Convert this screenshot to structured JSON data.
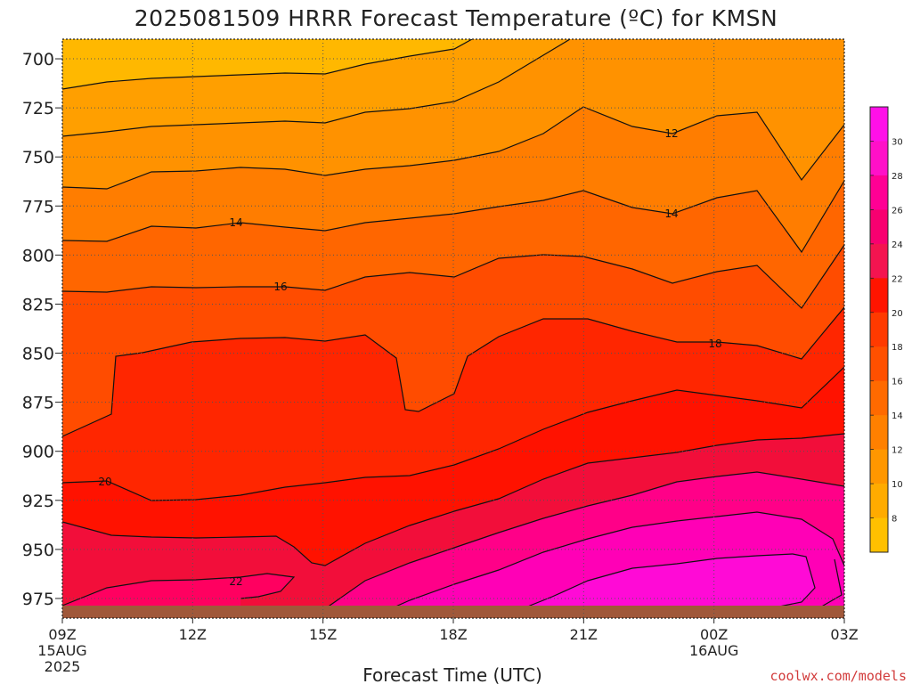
{
  "title": "2025081509 HRRR Forecast Temperature (ºC) for KMSN",
  "credit": "coolwx.com/models",
  "chart_data": {
    "type": "heatmap",
    "title": "2025081509 HRRR Forecast Temperature (ºC) for KMSN",
    "xlabel": "Forecast Time (UTC)",
    "ylabel": "",
    "y_scale": "pressure (reversed)",
    "ylim": [
      985,
      690
    ],
    "x_ticks": [
      {
        "label": "09Z",
        "sub": [
          "15AUG",
          "2025"
        ]
      },
      {
        "label": "12Z",
        "sub": []
      },
      {
        "label": "15Z",
        "sub": []
      },
      {
        "label": "18Z",
        "sub": []
      },
      {
        "label": "21Z",
        "sub": []
      },
      {
        "label": "00Z",
        "sub": [
          "16AUG"
        ]
      },
      {
        "label": "03Z",
        "sub": []
      }
    ],
    "y_ticks": [
      "700",
      "725",
      "750",
      "775",
      "800",
      "825",
      "850",
      "875",
      "900",
      "925",
      "950",
      "975"
    ],
    "grid": true,
    "contour_labels": [
      "12",
      "14",
      "14",
      "16",
      "18",
      "20",
      "22"
    ],
    "colorbar": {
      "labels": [
        "8",
        "10",
        "12",
        "14",
        "16",
        "18",
        "20",
        "22",
        "24",
        "26",
        "28",
        "30"
      ],
      "colors": [
        "#ffc000",
        "#ffab00",
        "#ff9700",
        "#ff8000",
        "#ff6a00",
        "#ff5000",
        "#ff3a00",
        "#ff1400",
        "#f41450",
        "#f80070",
        "#ff0094",
        "#ff10c8",
        "#ff10e8"
      ]
    },
    "band_colors": [
      "#ffb800",
      "#ff9f00",
      "#ff9200",
      "#ff7d00",
      "#ff6600",
      "#ff4c00",
      "#ff2600",
      "#ff1200",
      "#f20e3a",
      "#ff0060",
      "#ff0088",
      "#ff00b6",
      "#ff0ad6"
    ],
    "ground_color": "#a0583a"
  }
}
